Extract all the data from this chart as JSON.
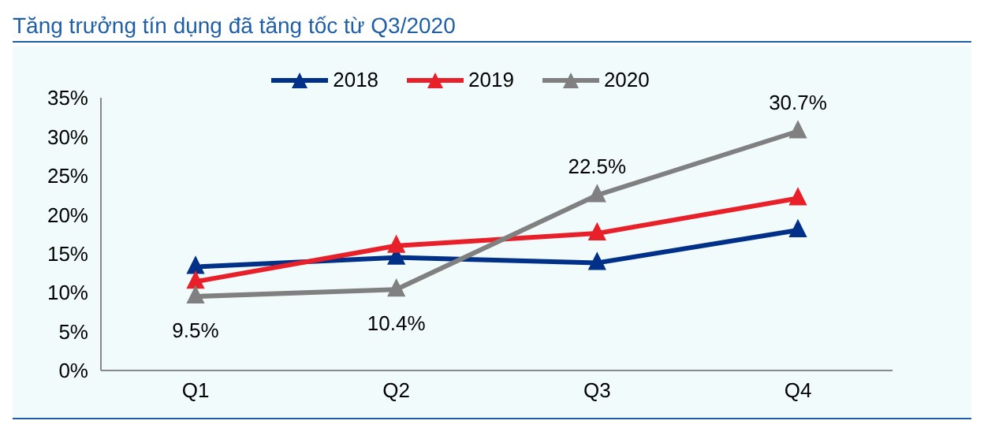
{
  "chart_data": {
    "type": "line",
    "title": "Tăng trưởng tín dụng đã tăng tốc từ Q3/2020",
    "categories": [
      "Q1",
      "Q2",
      "Q3",
      "Q4"
    ],
    "series": [
      {
        "name": "2018",
        "color": "#003087",
        "values": [
          13.3,
          14.5,
          13.8,
          18.0
        ]
      },
      {
        "name": "2019",
        "color": "#e8202a",
        "values": [
          11.4,
          16.0,
          17.6,
          22.1
        ]
      },
      {
        "name": "2020",
        "color": "#808080",
        "values": [
          9.5,
          10.4,
          22.5,
          30.7
        ],
        "value_labels": [
          "9.5%",
          "10.4%",
          "22.5%",
          "30.7%"
        ]
      }
    ],
    "ylim": [
      0,
      35
    ],
    "yticks": [
      {
        "value": 0,
        "label": "0%"
      },
      {
        "value": 5,
        "label": "5%"
      },
      {
        "value": 10,
        "label": "10%"
      },
      {
        "value": 15,
        "label": "15%"
      },
      {
        "value": 20,
        "label": "20%"
      },
      {
        "value": 25,
        "label": "25%"
      },
      {
        "value": 30,
        "label": "30%"
      },
      {
        "value": 35,
        "label": "35%"
      }
    ],
    "grid": false,
    "legend": "top",
    "marker": "triangle",
    "line_style": "solid"
  }
}
